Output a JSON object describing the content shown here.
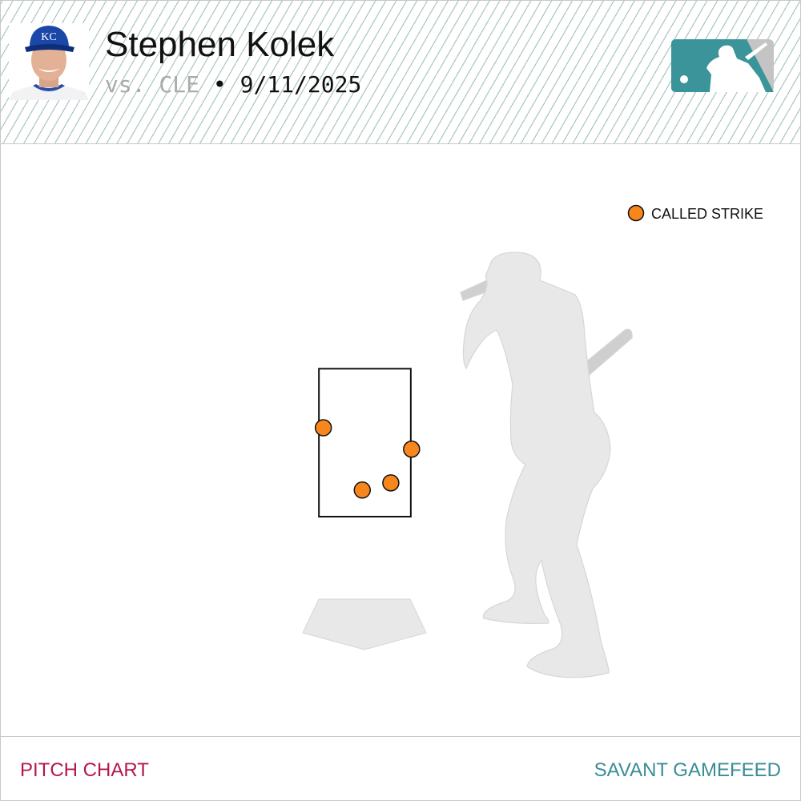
{
  "header": {
    "player_name": "Stephen Kolek",
    "opponent": "vs. CLE",
    "separator": "•",
    "date": "9/11/2025",
    "team_logo_text": "KC"
  },
  "colors": {
    "called_strike": "#f7861c",
    "accent_red": "#b5174b",
    "accent_teal": "#3a8d95",
    "logo_teal": "#3a9499",
    "logo_gray": "#c4c4c4"
  },
  "chart_data": {
    "type": "scatter",
    "title": "",
    "view": "catcher",
    "legend": [
      {
        "label": "CALLED STRIKE",
        "color": "#f7861c"
      }
    ],
    "legend_placement": "top-right",
    "strike_zone": {
      "x": [
        -0.708,
        0.708
      ],
      "z": [
        1.5,
        3.78
      ]
    },
    "points": [
      {
        "plate_x": -0.64,
        "plate_z": 2.87,
        "result": "CALLED STRIKE"
      },
      {
        "plate_x": 0.72,
        "plate_z": 2.54,
        "result": "CALLED STRIKE"
      },
      {
        "plate_x": 0.4,
        "plate_z": 2.02,
        "result": "CALLED STRIKE"
      },
      {
        "plate_x": -0.04,
        "plate_z": 1.91,
        "result": "CALLED STRIKE"
      }
    ]
  },
  "footer": {
    "left_label": "PITCH CHART",
    "right_label": "SAVANT GAMEFEED"
  }
}
